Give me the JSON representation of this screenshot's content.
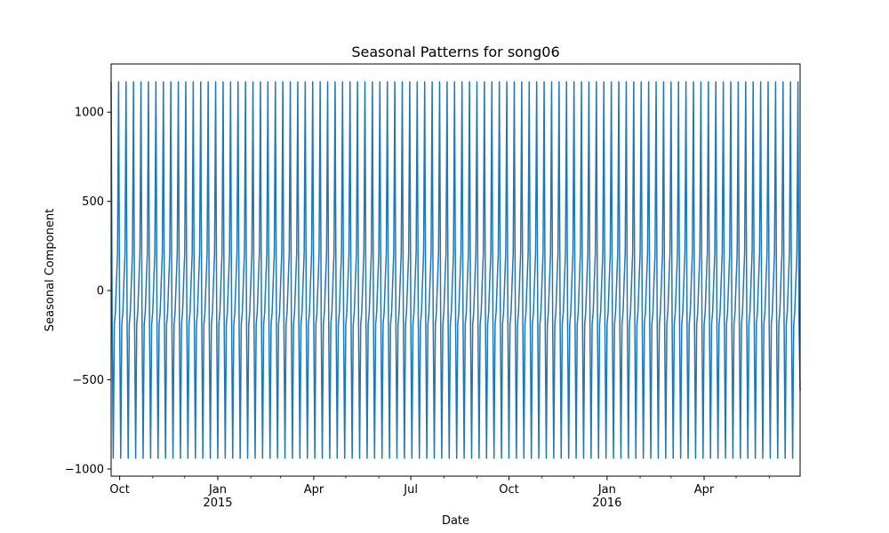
{
  "chart_data": {
    "type": "line",
    "title": "Seasonal Patterns for song06",
    "xlabel": "Date",
    "ylabel": "Seasonal Component",
    "x_range": [
      "2014-09-23",
      "2016-06-30"
    ],
    "ylim": [
      -1040,
      1270
    ],
    "grid": false,
    "legend": "none",
    "y_ticks": [
      {
        "value": 1000,
        "label": "1000"
      },
      {
        "value": 500,
        "label": "500"
      },
      {
        "value": 0,
        "label": "0"
      },
      {
        "value": -500,
        "label": "−500"
      },
      {
        "value": -1000,
        "label": "−1000"
      }
    ],
    "x_major_ticks": [
      {
        "date": "2014-10-01",
        "label": "Oct",
        "sublabel": ""
      },
      {
        "date": "2015-01-01",
        "label": "Jan",
        "sublabel": "2015"
      },
      {
        "date": "2015-04-01",
        "label": "Apr",
        "sublabel": ""
      },
      {
        "date": "2015-07-01",
        "label": "Jul",
        "sublabel": ""
      },
      {
        "date": "2015-10-01",
        "label": "Oct",
        "sublabel": ""
      },
      {
        "date": "2016-01-01",
        "label": "Jan",
        "sublabel": "2016"
      },
      {
        "date": "2016-04-01",
        "label": "Apr",
        "sublabel": ""
      }
    ],
    "x_minor_ticks": [
      "2014-11-01",
      "2014-12-01",
      "2015-02-01",
      "2015-03-01",
      "2015-05-01",
      "2015-06-01",
      "2015-08-01",
      "2015-09-01",
      "2015-11-01",
      "2015-12-01",
      "2016-02-01",
      "2016-03-01",
      "2016-05-01",
      "2016-06-01"
    ],
    "series": [
      {
        "color": "#1f77b4",
        "start": "2014-09-23",
        "end": "2016-06-30",
        "period_days": 7,
        "weekly_pattern": [
          1170,
          -180,
          -940,
          -190,
          -120,
          50,
          210
        ],
        "last_value": -560
      }
    ]
  }
}
